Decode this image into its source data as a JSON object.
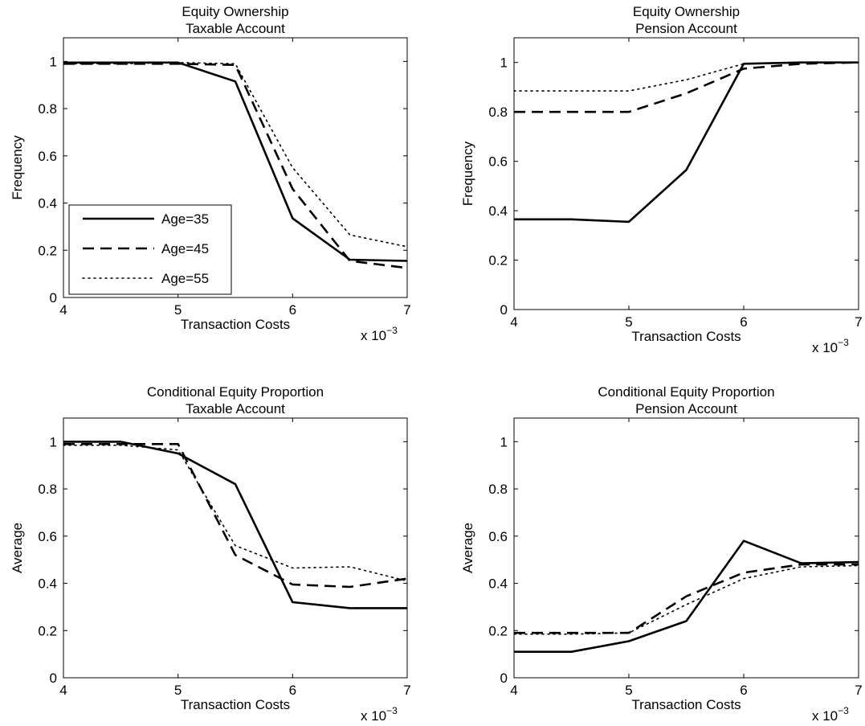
{
  "figure": {
    "background": "#ffffff",
    "line_color": "#000000"
  },
  "chart_data": [
    {
      "type": "line",
      "title_lines": [
        "Equity Ownership",
        "Taxable Account"
      ],
      "xlabel": "Transaction Costs",
      "ylabel": "Frequency",
      "x_exponent_base": "x 10",
      "x_exponent_power": "−3",
      "xlim": [
        4,
        7
      ],
      "ylim": [
        0,
        1.1
      ],
      "xticks": [
        "4",
        "5",
        "6",
        "7"
      ],
      "yticks": [
        "0",
        "0.2",
        "0.4",
        "0.6",
        "0.8",
        "1"
      ],
      "grid": false,
      "legend": {
        "placement": "lower-left",
        "entries": [
          "Age=35",
          "Age=45",
          "Age=55"
        ]
      },
      "x": [
        4,
        4.5,
        5,
        5.5,
        6,
        6.5,
        7
      ],
      "series": [
        {
          "name": "Age=35",
          "style": "solid",
          "values": [
            0.995,
            0.995,
            0.995,
            0.915,
            0.335,
            0.16,
            0.155
          ]
        },
        {
          "name": "Age=45",
          "style": "dashed",
          "values": [
            0.99,
            0.99,
            0.99,
            0.985,
            0.46,
            0.155,
            0.125
          ]
        },
        {
          "name": "Age=55",
          "style": "dotted",
          "values": [
            0.99,
            0.99,
            0.995,
            0.99,
            0.55,
            0.265,
            0.215
          ]
        }
      ]
    },
    {
      "type": "line",
      "title_lines": [
        "Equity Ownership",
        "Pension Account"
      ],
      "xlabel": "Transaction Costs",
      "ylabel": "Frequency",
      "x_exponent_base": "x 10",
      "x_exponent_power": "−3",
      "xlim": [
        4,
        7
      ],
      "ylim": [
        0,
        1.1
      ],
      "xticks": [
        "4",
        "5",
        "6",
        "7"
      ],
      "yticks": [
        "0",
        "0.2",
        "0.4",
        "0.6",
        "0.8",
        "1"
      ],
      "grid": false,
      "x": [
        4,
        4.5,
        5,
        5.5,
        6,
        6.5,
        7
      ],
      "series": [
        {
          "name": "Age=35",
          "style": "solid",
          "values": [
            0.365,
            0.365,
            0.355,
            0.565,
            0.995,
            1.0,
            1.0
          ]
        },
        {
          "name": "Age=45",
          "style": "dashed",
          "values": [
            0.8,
            0.8,
            0.8,
            0.875,
            0.975,
            0.995,
            1.0
          ]
        },
        {
          "name": "Age=55",
          "style": "dotted",
          "values": [
            0.885,
            0.885,
            0.885,
            0.93,
            0.995,
            1.0,
            1.0
          ]
        }
      ]
    },
    {
      "type": "line",
      "title_lines": [
        "Conditional Equity Proportion",
        "Taxable Account"
      ],
      "xlabel": "Transaction Costs",
      "ylabel": "Average",
      "x_exponent_base": "x 10",
      "x_exponent_power": "−3",
      "xlim": [
        4,
        7
      ],
      "ylim": [
        0,
        1.1
      ],
      "xticks": [
        "4",
        "5",
        "6",
        "7"
      ],
      "yticks": [
        "0",
        "0.2",
        "0.4",
        "0.6",
        "0.8",
        "1"
      ],
      "grid": false,
      "x": [
        4,
        4.5,
        5,
        5.5,
        6,
        6.5,
        7
      ],
      "series": [
        {
          "name": "Age=35",
          "style": "solid",
          "values": [
            1.0,
            1.0,
            0.95,
            0.82,
            0.32,
            0.295,
            0.295
          ]
        },
        {
          "name": "Age=45",
          "style": "dashed",
          "values": [
            0.99,
            0.99,
            0.99,
            0.52,
            0.395,
            0.385,
            0.42
          ]
        },
        {
          "name": "Age=55",
          "style": "dotted",
          "values": [
            0.985,
            0.985,
            0.965,
            0.56,
            0.465,
            0.47,
            0.41
          ]
        }
      ]
    },
    {
      "type": "line",
      "title_lines": [
        "Conditional Equity Proportion",
        "Pension Account"
      ],
      "xlabel": "Transaction Costs",
      "ylabel": "Average",
      "x_exponent_base": "x 10",
      "x_exponent_power": "−3",
      "xlim": [
        4,
        7
      ],
      "ylim": [
        0,
        1.1
      ],
      "xticks": [
        "4",
        "5",
        "6",
        "7"
      ],
      "yticks": [
        "0",
        "0.2",
        "0.4",
        "0.6",
        "0.8",
        "1"
      ],
      "grid": false,
      "x": [
        4,
        4.5,
        5,
        5.5,
        6,
        6.5,
        7
      ],
      "series": [
        {
          "name": "Age=35",
          "style": "solid",
          "values": [
            0.11,
            0.11,
            0.155,
            0.24,
            0.58,
            0.485,
            0.49
          ]
        },
        {
          "name": "Age=45",
          "style": "dashed",
          "values": [
            0.19,
            0.19,
            0.19,
            0.345,
            0.445,
            0.48,
            0.48
          ]
        },
        {
          "name": "Age=55",
          "style": "dotted",
          "values": [
            0.185,
            0.185,
            0.19,
            0.31,
            0.42,
            0.47,
            0.475
          ]
        }
      ]
    }
  ]
}
